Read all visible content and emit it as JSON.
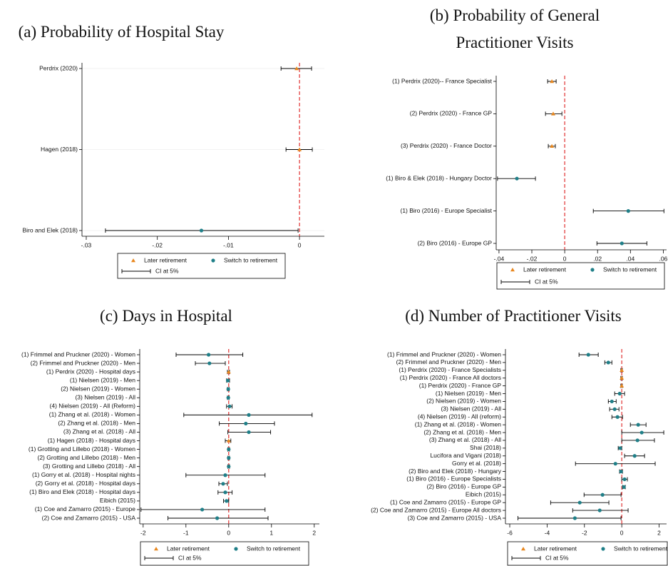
{
  "chart_data": [
    {
      "type": "forest",
      "title": "(a) Probability of Hospital Stay",
      "categories": [
        "Perdrix (2020)",
        "Hagen (2018)",
        "Biro and Elek (2018)"
      ],
      "series": [
        {
          "name": "Later retirement",
          "color": "#e8871e",
          "marker": "triangle",
          "values": [
            -0.0004,
            0.0,
            null
          ],
          "lower": [
            -0.0026,
            -0.0019,
            null
          ],
          "upper": [
            0.0017,
            0.0018,
            null
          ]
        },
        {
          "name": "Switch to retirement",
          "color": "#1f7f88",
          "marker": "circle",
          "values": [
            null,
            null,
            -0.0138
          ],
          "lower": [
            null,
            null,
            -0.0273
          ],
          "upper": [
            null,
            null,
            -0.0002
          ]
        }
      ],
      "ci_label": "CI at 5%",
      "reference_line": 0,
      "grid": true,
      "xlim": [
        -0.0306,
        0.0035
      ],
      "xticks": [
        {
          "value": -0.03,
          "label": "-.03"
        },
        {
          "value": -0.02,
          "label": "-.02"
        },
        {
          "value": -0.01,
          "label": "-.01"
        },
        0
      ]
    },
    {
      "type": "forest",
      "title": "(b) Probability of General Practitioner Visits",
      "categories": [
        "(1) Perdrix (2020)-- France Specialist",
        "(2) Perdrix (2020) - France GP",
        "(3) Perdrix (2020) - France Doctor",
        "(1) Biro & Elek (2018) - Hungary Doctor",
        "(1) Biro (2016) - Europe Specialist",
        "(2) Biro (2016) - Europe GP"
      ],
      "series": [
        {
          "name": "Later retirement",
          "color": "#e8871e",
          "marker": "triangle",
          "values": [
            -0.0078,
            -0.007,
            -0.0078,
            null,
            null,
            null
          ],
          "lower": [
            -0.0104,
            -0.0117,
            -0.01,
            null,
            null,
            null
          ],
          "upper": [
            -0.0052,
            -0.0017,
            -0.0057,
            null,
            null,
            null
          ]
        },
        {
          "name": "Switch to retirement",
          "color": "#1f7f88",
          "marker": "circle",
          "values": [
            null,
            null,
            null,
            -0.0291,
            0.0387,
            0.0348
          ],
          "lower": [
            null,
            null,
            null,
            -0.0409,
            0.0174,
            0.0196
          ],
          "upper": [
            null,
            null,
            null,
            -0.0178,
            0.0604,
            0.05
          ]
        }
      ],
      "ci_label": "CI at 5%",
      "reference_line": 0,
      "grid": false,
      "xlim": [
        -0.0417,
        0.062
      ],
      "xticks": [
        {
          "value": -0.04,
          "label": "-.04"
        },
        {
          "value": -0.02,
          "label": "-.02"
        },
        0,
        {
          "value": 0.02,
          "label": ".02"
        },
        {
          "value": 0.04,
          "label": ".04"
        },
        {
          "value": 0.06,
          "label": ".06"
        }
      ]
    },
    {
      "type": "forest",
      "title": "(c) Days in Hospital",
      "categories": [
        "(1) Frimmel and Pruckner (2020) - Women",
        "(2) Frimmel and Pruckner (2020) - Men",
        "(1) Perdrix (2020) - Hospital days",
        "(1) Nielsen (2019) - Men",
        "(2) Nielsen (2019) - Women",
        "(3) Nielsen (2019) - All",
        "(4) Nielsen (2019) - All (Reform)",
        "(1) Zhang et al. (2018) - Women",
        "(2) Zhang et al. (2018) - Men",
        "(3) Zhang et al. (2018) - All",
        "(1) Hagen (2018) - Hospital days",
        "(1) Grotting and Lillebo (2018) - Women",
        "(2) Grotting and Lillebo (2018) - Men",
        "(3) Grotting and Lillebo (2018) - All",
        "(1) Gorry et al. (2018) - Hospital nights",
        "(2) Gorry et al. (2018) - Hospital days",
        "(1) Biro and Elek (2018) - Hospital days",
        "Eibich (2015)",
        "(1) Coe and Zamarro (2015) - Europe",
        "(2) Coe and Zamarro (2015) - USA"
      ],
      "series": [
        {
          "name": "Later retirement",
          "color": "#e8871e",
          "marker": "triangle",
          "values": [
            null,
            null,
            0.0,
            null,
            null,
            null,
            null,
            null,
            null,
            null,
            0.0,
            null,
            null,
            null,
            null,
            null,
            null,
            null,
            null,
            null
          ],
          "lower": [
            null,
            null,
            -0.03,
            null,
            null,
            null,
            null,
            null,
            null,
            null,
            -0.08,
            null,
            null,
            null,
            null,
            null,
            null,
            null,
            null,
            null
          ],
          "upper": [
            null,
            null,
            0.02,
            null,
            null,
            null,
            null,
            null,
            null,
            null,
            0.05,
            null,
            null,
            null,
            null,
            null,
            null,
            null,
            null,
            null
          ]
        },
        {
          "name": "Switch to retirement",
          "color": "#1f7f88",
          "marker": "circle",
          "values": [
            -0.47,
            -0.45,
            null,
            -0.02,
            -0.01,
            -0.01,
            0.02,
            0.47,
            0.4,
            0.47,
            null,
            0,
            0,
            0,
            -0.08,
            -0.13,
            -0.08,
            -0.05,
            -0.62,
            -0.27
          ],
          "lower": [
            -1.23,
            -0.78,
            null,
            -0.05,
            -0.03,
            -0.03,
            -0.05,
            -1.05,
            -0.22,
            -0.02,
            null,
            -0.02,
            -0.02,
            -0.02,
            -1.0,
            -0.23,
            -0.25,
            -0.12,
            -2.05,
            -1.42
          ],
          "upper": [
            0.33,
            -0.08,
            null,
            0.02,
            0.01,
            0.01,
            0.08,
            1.95,
            1.07,
            0.98,
            null,
            0.02,
            0.02,
            0.02,
            0.85,
            -0.03,
            0.08,
            0.0,
            0.85,
            0.92
          ]
        }
      ],
      "ci_label": "CI at 5%",
      "reference_line": 0,
      "grid": false,
      "xlim": [
        -2.08,
        2.12
      ],
      "xticks": [
        -2,
        -1,
        0,
        1,
        2
      ]
    },
    {
      "type": "forest",
      "title": "(d) Number of Practitioner Visits",
      "categories": [
        "(1) Frimmel and Pruckner (2020) - Women",
        "(2) Frimmel and Pruckner (2020) - Men",
        "(1) Perdrix (2020) - France Specialists",
        "(1) Perdrix (2020) - France All doctors",
        "(1) Perdrix (2020) - France GP",
        "(1) Nielsen (2019) - Men",
        "(2) Nielsen (2019) - Women",
        "(3) Nielsen (2019) - All",
        "(4) Nielsen (2019) - All (reform)",
        "(1) Zhang et al. (2018) - Women",
        "(2) Zhang et al. (2018) - Men",
        "(3) Zhang et al. (2018) - All",
        "Shai (2018)",
        "Lucifora and Vigani (2018)",
        "Gorry et al. (2018)",
        "(2) Biro and Elek (2018) - Hungary",
        "(1) Biro (2016) - Europe Specialists",
        "(2) Biro (2016) - Europe GP",
        "Eibich (2015)",
        "(1) Coe and Zamarro (2015) - Europe GP",
        "(2) Coe and Zamarro (2015) - Europe All doctors",
        "(3) Coe and Zamarro (2015) - USA"
      ],
      "series": [
        {
          "name": "Later retirement",
          "color": "#e8871e",
          "marker": "triangle",
          "values": [
            null,
            null,
            0.0,
            0.0,
            0.0,
            null,
            null,
            null,
            null,
            null,
            null,
            null,
            null,
            null,
            null,
            null,
            null,
            null,
            null,
            null,
            null,
            null
          ],
          "lower": [
            null,
            null,
            -0.05,
            -0.05,
            -0.05,
            null,
            null,
            null,
            null,
            null,
            null,
            null,
            null,
            null,
            null,
            null,
            null,
            null,
            null,
            null,
            null,
            null
          ],
          "upper": [
            null,
            null,
            0.03,
            0.03,
            0.03,
            null,
            null,
            null,
            null,
            null,
            null,
            null,
            null,
            null,
            null,
            null,
            null,
            null,
            null,
            null,
            null,
            null
          ]
        },
        {
          "name": "Switch to retirement",
          "color": "#1f7f88",
          "marker": "circle",
          "values": [
            -1.79,
            -0.72,
            null,
            null,
            null,
            -0.11,
            -0.53,
            -0.38,
            -0.23,
            0.88,
            1.07,
            0.84,
            -0.08,
            0.69,
            -0.34,
            -0.04,
            0.15,
            0.11,
            -1.03,
            -2.25,
            -1.18,
            -2.51
          ],
          "lower": [
            -2.29,
            -0.91,
            null,
            null,
            null,
            -0.38,
            -0.72,
            -0.65,
            -0.53,
            0.46,
            0.0,
            0.0,
            -0.19,
            0.15,
            -2.48,
            -0.12,
            0.0,
            0.04,
            -2.02,
            -3.81,
            -2.63,
            -5.56
          ],
          "upper": [
            -1.26,
            -0.53,
            null,
            null,
            null,
            0.15,
            -0.3,
            -0.15,
            0.04,
            1.3,
            2.25,
            1.75,
            0.0,
            1.22,
            1.79,
            0.04,
            0.3,
            0.19,
            -0.04,
            -0.69,
            0.34,
            -0.04
          ]
        }
      ],
      "ci_label": "CI at 5%",
      "reference_line": 0,
      "grid": false,
      "xlim": [
        -6.23,
        2.4
      ],
      "xticks": [
        -6,
        -4,
        -2,
        0,
        2
      ]
    }
  ]
}
